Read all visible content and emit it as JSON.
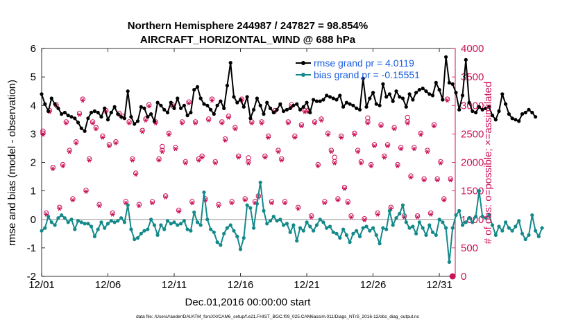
{
  "chart_data": {
    "type": "line",
    "title_line1": "Northern Hemisphere 244987 / 247827 = 98.854%",
    "title_line2": "AIRCRAFT_HORIZONTAL_WIND @ 688 hPa",
    "xlabel": "Dec.01,2016 00:00:00 start",
    "ylabel_left": "rmse and bias (model - observation)",
    "ylabel_right": "# of obs: o=possible; ×=assimilated",
    "footer": "data file: /Users/raeder/DAI/ATM_forcXX/CAM6_setup/f.e21.FHIST_BGC.f09_025.CAM6assim.011/Diags_NTrS_2016-12/obs_diag_output.nc",
    "xlim": [
      0,
      31.2
    ],
    "ylim_left": [
      -2,
      6
    ],
    "ylim_right": [
      0,
      4000
    ],
    "x_ticks": [
      {
        "value": 0,
        "label": "12/01"
      },
      {
        "value": 5,
        "label": "12/06"
      },
      {
        "value": 10,
        "label": "12/11"
      },
      {
        "value": 15,
        "label": "12/16"
      },
      {
        "value": 20,
        "label": "12/21"
      },
      {
        "value": 25,
        "label": "12/26"
      },
      {
        "value": 30,
        "label": "12/31"
      }
    ],
    "y_ticks_left": [
      "-2",
      "-1",
      "0",
      "1",
      "2",
      "3",
      "4",
      "5",
      "6"
    ],
    "y_ticks_right": [
      "0",
      "500",
      "1000",
      "1500",
      "2000",
      "2500",
      "3000",
      "3500",
      "4000"
    ],
    "colors": {
      "rmse": "#000000",
      "bias": "#13898a",
      "counts": "#cc1158",
      "zero_line": "#aaaaaa",
      "legend_text": "#1a5de0"
    },
    "series": [
      {
        "name": "rmse grand pr = 4.0119",
        "axis": "left",
        "x_step": 0.25,
        "values": [
          4.4,
          4.05,
          3.8,
          4.25,
          4.05,
          3.9,
          3.7,
          3.75,
          3.65,
          3.6,
          3.55,
          3.4,
          3.2,
          3.1,
          3.55,
          3.75,
          3.8,
          3.75,
          3.6,
          3.9,
          3.5,
          3.75,
          3.95,
          3.7,
          3.6,
          3.55,
          4.5,
          3.6,
          3.35,
          3.45,
          3.95,
          3.9,
          3.6,
          3.7,
          3.45,
          4.1,
          4.0,
          3.85,
          3.75,
          4.1,
          3.9,
          4.25,
          3.9,
          4.0,
          3.65,
          3.75,
          4.55,
          4.65,
          4.25,
          4.05,
          4.0,
          3.85,
          3.7,
          4.0,
          4.15,
          3.9,
          4.7,
          5.5,
          4.3,
          4.1,
          4.2,
          3.95,
          4.3,
          3.55,
          3.85,
          4.25,
          4.0,
          3.7,
          4.1,
          3.9,
          3.75,
          3.85,
          4.05,
          3.8,
          3.85,
          3.9,
          4.0,
          4.05,
          3.85,
          3.95,
          4.1,
          3.75,
          4.2,
          4.15,
          4.15,
          4.2,
          4.35,
          4.3,
          4.25,
          4.2,
          4.35,
          3.95,
          4.1,
          4.05,
          4.0,
          3.9,
          3.85,
          4.95,
          3.95,
          4.25,
          4.45,
          4.05,
          4.0,
          4.75,
          4.3,
          4.4,
          4.15,
          4.5,
          4.3,
          4.25,
          3.95,
          4.4,
          4.2,
          4.45,
          4.55,
          4.6,
          4.5,
          4.4,
          4.35,
          4.8,
          4.55,
          4.2,
          5.7,
          4.8,
          4.75,
          4.45,
          3.85,
          4.35,
          5.6,
          4.1,
          3.8,
          3.75,
          3.95,
          3.85,
          3.9,
          3.95,
          3.65,
          3.5,
          3.8,
          4.4,
          4.05,
          3.7,
          3.55,
          3.5,
          3.45,
          3.7,
          3.75,
          3.85,
          3.75,
          3.6
        ]
      },
      {
        "name": "bias grand pr = -0.15551",
        "axis": "left",
        "x_step": 0.25,
        "values": [
          -0.4,
          -0.3,
          0.1,
          -0.1,
          -0.2,
          0.05,
          0.15,
          0.05,
          -0.1,
          0.0,
          -0.35,
          -0.05,
          -0.1,
          -0.15,
          -0.15,
          -0.25,
          -0.6,
          -0.35,
          -0.1,
          -0.3,
          -0.15,
          -0.05,
          -0.1,
          -0.05,
          0.05,
          -0.1,
          0.5,
          -0.35,
          -0.7,
          -0.65,
          -0.5,
          -0.4,
          -0.35,
          0.0,
          -0.2,
          -0.55,
          -0.2,
          -0.35,
          -0.05,
          -0.15,
          -0.1,
          -0.2,
          -0.15,
          -0.05,
          -0.35,
          -0.4,
          0.25,
          -0.1,
          -0.2,
          0.95,
          0.0,
          -0.35,
          -0.45,
          -0.8,
          -0.9,
          -0.5,
          -0.3,
          -0.2,
          -0.4,
          -0.6,
          -1.05,
          -0.65,
          0.5,
          0.4,
          -0.3,
          0.55,
          1.3,
          0.3,
          -0.15,
          -0.05,
          0.1,
          -0.05,
          0.0,
          -0.2,
          -0.15,
          -0.45,
          -0.2,
          -0.75,
          -0.3,
          -0.4,
          -0.1,
          -0.25,
          -0.4,
          -0.2,
          0.0,
          -0.1,
          -0.3,
          -0.25,
          -0.45,
          -0.5,
          -0.65,
          -0.35,
          -0.55,
          -0.8,
          -0.5,
          -0.4,
          -0.6,
          -0.3,
          -0.25,
          -0.4,
          -0.3,
          -0.55,
          -0.85,
          -0.3,
          -0.35,
          0.3,
          -0.2,
          0.05,
          0.2,
          0.5,
          -0.1,
          -0.3,
          -0.25,
          -0.5,
          -0.1,
          -0.3,
          -0.55,
          -0.2,
          -0.45,
          -0.55,
          0.0,
          -0.1,
          -0.3,
          -1.5,
          -0.3,
          0.15,
          0.3,
          -0.2,
          -0.1,
          0.05,
          -0.1,
          0.1,
          1.0,
          0.1,
          0.05,
          0.15,
          -0.2,
          -0.55,
          -0.25,
          -0.4,
          -0.1,
          -0.3,
          -0.4,
          -0.25,
          -0.05,
          -0.5,
          -0.7,
          -0.55,
          0.15,
          -0.4,
          -0.6,
          -0.3
        ]
      }
    ],
    "legend": [
      {
        "label": "rmse grand pr = 4.0119",
        "series": "rmse",
        "position": "top-right"
      },
      {
        "label": "bias grand pr = -0.15551",
        "series": "bias",
        "position": "top-right"
      }
    ],
    "obs_count_days": {
      "axis": "right",
      "first_day_offset": 0.1,
      "level_offsets": [
        0.0,
        0.25,
        0.5,
        0.75
      ],
      "levels_by_day": [
        [
          2500,
          1100,
          2900,
          1900
        ],
        [
          3000,
          1200,
          1950,
          2700
        ],
        [
          2200,
          1350,
          2350,
          2850
        ],
        [
          3100,
          1500,
          2050,
          2700
        ],
        [
          2600,
          1250,
          2450,
          2900
        ],
        [
          2300,
          1100,
          2350,
          2850
        ],
        [
          2800,
          1300,
          2700,
          2050
        ],
        [
          1800,
          1250,
          2550,
          2750
        ],
        [
          3000,
          1300,
          2700,
          2050
        ],
        [
          2200,
          1400,
          2500,
          3000
        ],
        [
          2250,
          1150,
          2700,
          2000
        ],
        [
          3050,
          1300,
          2700,
          2050
        ],
        [
          2100,
          1350,
          2750,
          3100
        ],
        [
          2000,
          1250,
          2700,
          2400
        ],
        [
          2800,
          1300,
          2600,
          2100
        ],
        [
          3100,
          1350,
          2000,
          2700
        ],
        [
          1300,
          1400,
          2700,
          2100
        ],
        [
          2450,
          1300,
          2900,
          2200
        ],
        [
          2050,
          1300,
          2700,
          3000
        ],
        [
          2450,
          1200,
          2650,
          2900
        ],
        [
          2900,
          1050,
          2700,
          1950
        ],
        [
          2750,
          1300,
          2500,
          2200
        ],
        [
          2000,
          1350,
          2450,
          1550
        ],
        [
          1300,
          1050,
          2500,
          2200
        ],
        [
          2000,
          1000,
          2700,
          1950
        ],
        [
          2300,
          1100,
          2650,
          2100
        ],
        [
          2300,
          1200,
          2600,
          1950
        ],
        [
          2250,
          1050,
          2700,
          1750
        ],
        [
          2250,
          1050,
          2500,
          1700
        ],
        [
          2200,
          1100,
          2650,
          1700
        ],
        [
          2000,
          1350,
          3100,
          1700
        ]
      ],
      "possible_extra": [
        {
          "day_index": 0,
          "level_index": 0,
          "delta": 50
        },
        {
          "day_index": 9,
          "level_index": 0,
          "delta": 80
        },
        {
          "day_index": 15,
          "level_index": 2,
          "delta": 80
        },
        {
          "day_index": 22,
          "level_index": 0,
          "delta": 90
        },
        {
          "day_index": 24,
          "level_index": 2,
          "delta": 80
        },
        {
          "day_index": 27,
          "level_index": 2,
          "delta": 90
        }
      ],
      "final_point": {
        "day": 31.0,
        "value": 0
      }
    }
  }
}
